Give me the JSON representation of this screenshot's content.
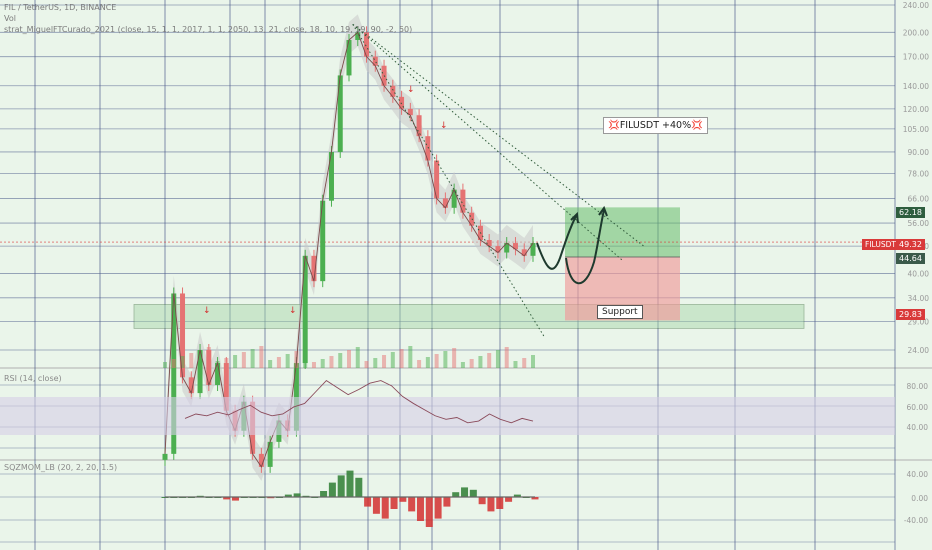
{
  "header": {
    "symbol_line": "FIL / TetherUS, 1D, BINANCE",
    "vol_label": "Vol",
    "strategy_line": "strat_MiguelFTCurado_2021 (close, 15, 1, 1, 2017, 1, 1, 2050, 13, 21, close, 18, 10, 19, 19, 90, -2, 50)"
  },
  "rsi_pane": {
    "title": "RSI (14, close)",
    "ticks": [
      "80.00",
      "60.00",
      "40.00"
    ]
  },
  "mom_pane": {
    "title": "SQZMOM_LB (20, 2, 20, 1.5)",
    "ticks": [
      "40.00",
      "0.00",
      "-40.00"
    ]
  },
  "annotations": {
    "support_label": "Support",
    "callout": "💢FILUSDT +40%💢",
    "symbol_tag": "FILUSDT"
  },
  "price_tags": {
    "target": "62.18",
    "current": "49.32",
    "entry": "44.64",
    "support": "29.83"
  },
  "colors": {
    "background": "#eaf5ea",
    "up_candle": "#4caf50",
    "down_candle": "#e57373",
    "bollinger_fill": "#c8c8c8",
    "support_zone": "#a5d6a7",
    "profit_zone": "#66bb6a",
    "loss_zone": "#ef9a9a",
    "rsi_band": "#d6cfe6",
    "mom_positive": "#2e7d32",
    "mom_negative": "#d32f2f"
  },
  "chart_data": {
    "type": "line",
    "y_scale": "log",
    "price_axis_ticks": [
      240,
      200,
      170,
      140,
      120,
      105,
      90,
      78,
      66,
      56,
      48,
      40,
      34,
      29,
      24
    ],
    "series": [
      {
        "values": [
          12,
          35,
          20,
          18,
          24,
          19,
          22,
          16,
          14,
          17,
          12,
          11,
          13,
          15,
          14,
          22,
          45,
          38,
          65,
          90,
          150,
          190,
          200,
          170,
          160,
          140,
          130,
          120,
          115,
          100,
          85,
          66,
          62,
          70,
          60,
          55,
          50,
          48,
          46,
          49,
          47,
          45,
          49
        ]
      }
    ],
    "support_level": 29.83,
    "entry_level": 44.64,
    "target_level": 62.18,
    "current_price": 49.32
  }
}
